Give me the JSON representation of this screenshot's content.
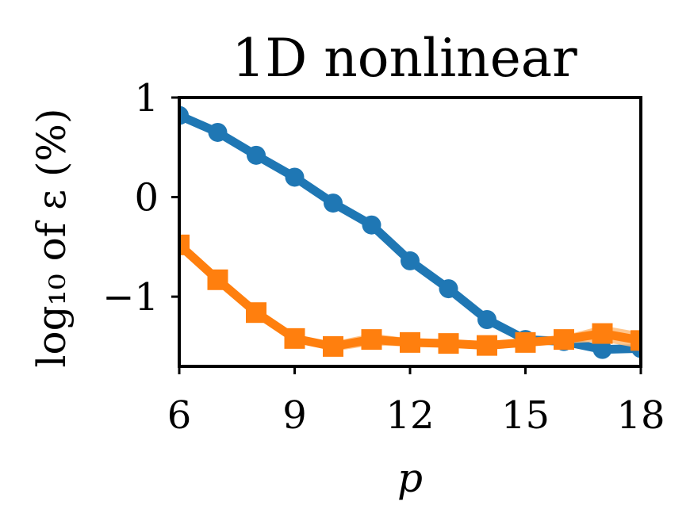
{
  "chart_data": {
    "type": "line",
    "title": "1D nonlinear",
    "xlabel": "p",
    "ylabel": "log₁₀ of ε (%)",
    "xlim": [
      6,
      18
    ],
    "ylim": [
      -1.7,
      1.0
    ],
    "xticks": [
      6,
      9,
      12,
      15,
      18
    ],
    "yticks": [
      1,
      0,
      -1
    ],
    "ytick_labels": [
      "1",
      "0",
      "−1"
    ],
    "grid": false,
    "legend": "none",
    "x": [
      6,
      7,
      8,
      9,
      10,
      11,
      12,
      13,
      14,
      15,
      16,
      17,
      18
    ],
    "series": [
      {
        "marker": "circle",
        "color": "#1f77b4",
        "values": [
          0.82,
          0.65,
          0.42,
          0.2,
          -0.06,
          -0.28,
          -0.64,
          -0.92,
          -1.23,
          -1.43,
          -1.45,
          -1.53,
          -1.52
        ]
      },
      {
        "marker": "square",
        "color": "#ff7f0e",
        "band_color": "#ffbb78",
        "values": [
          -0.48,
          -0.83,
          -1.16,
          -1.42,
          -1.5,
          -1.43,
          -1.46,
          -1.47,
          -1.49,
          -1.46,
          -1.43,
          -1.37,
          -1.44
        ],
        "band_low": [
          -0.5,
          -0.86,
          -1.19,
          -1.45,
          -1.55,
          -1.49,
          -1.5,
          -1.5,
          -1.52,
          -1.49,
          -1.47,
          -1.45,
          -1.52
        ],
        "band_high": [
          -0.46,
          -0.8,
          -1.13,
          -1.39,
          -1.45,
          -1.37,
          -1.42,
          -1.44,
          -1.46,
          -1.43,
          -1.39,
          -1.29,
          -1.36
        ]
      }
    ]
  }
}
